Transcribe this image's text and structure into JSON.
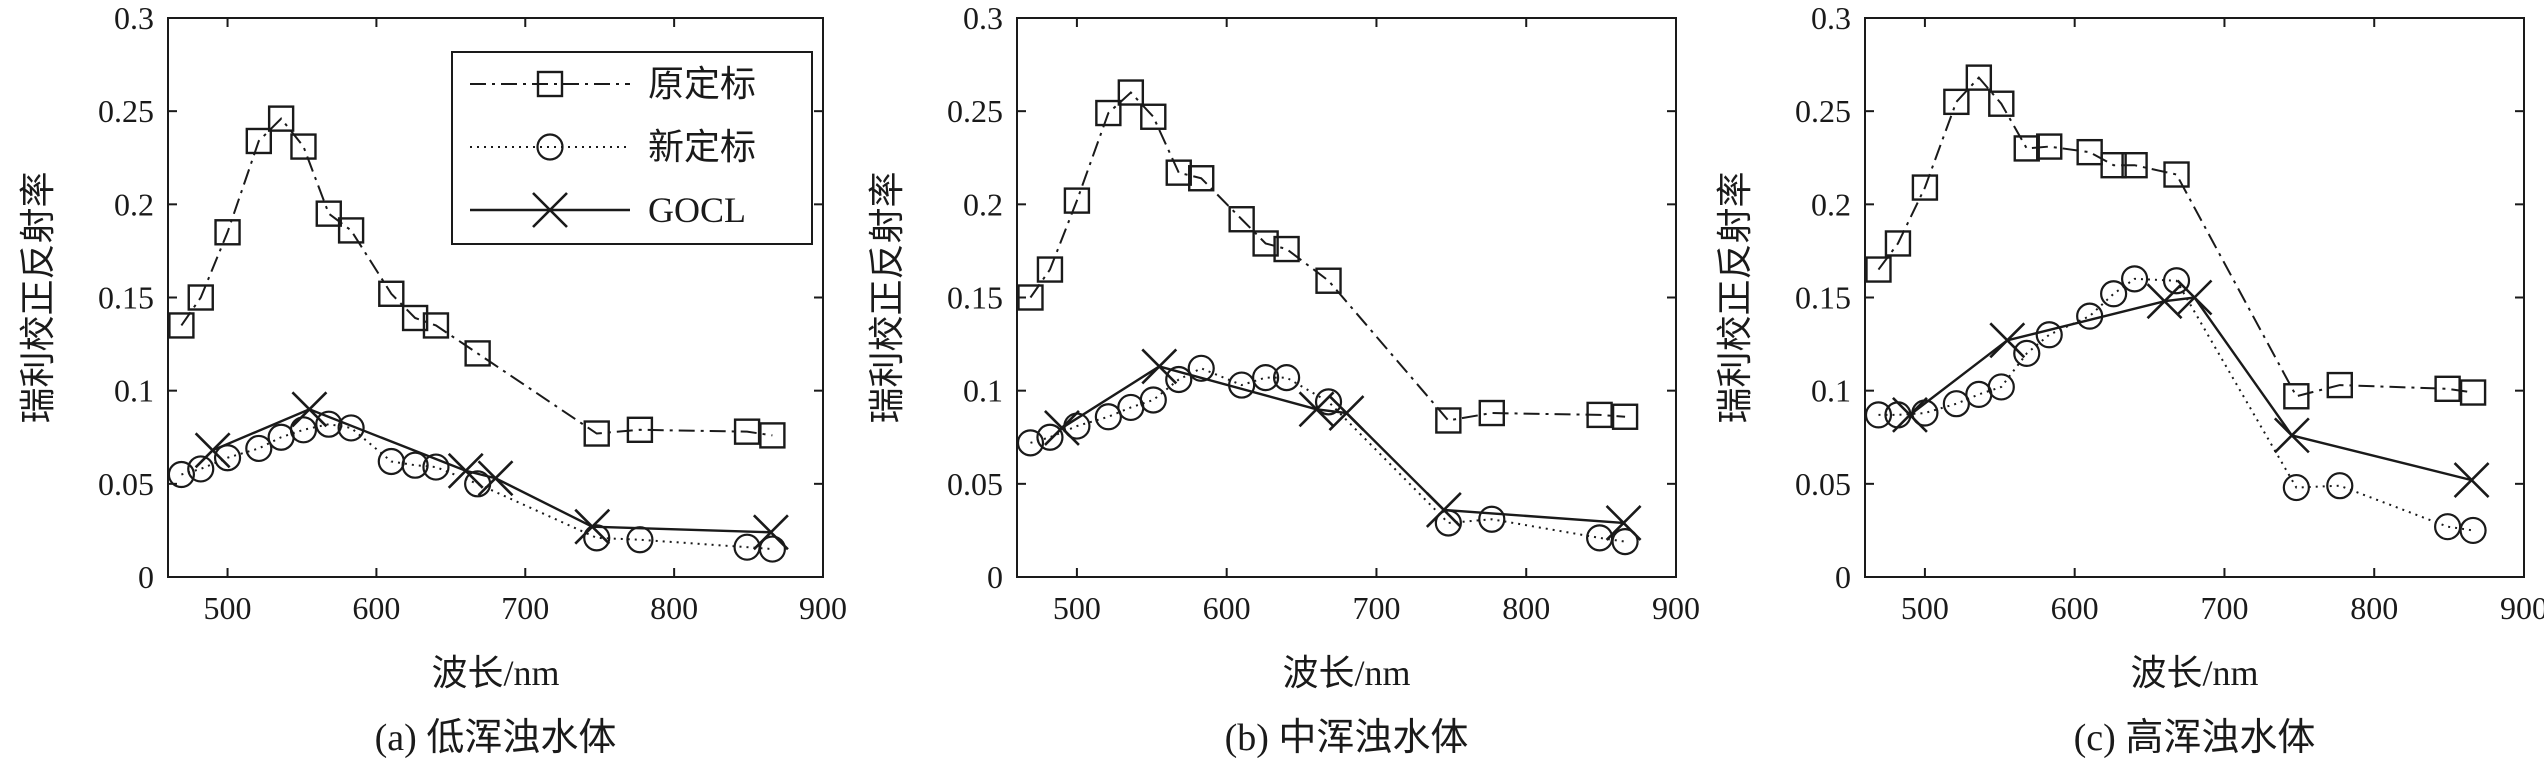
{
  "figure": {
    "legend_entries": [
      "原定标",
      "新定标",
      "GOCL"
    ]
  },
  "chart_data": [
    {
      "type": "line",
      "caption": "(a) 低浑浊水体",
      "xlabel": "波长/nm",
      "ylabel": "瑞利校正反射率",
      "xlim": [
        460,
        900
      ],
      "ylim": [
        0,
        0.3
      ],
      "xticks": [
        "500",
        "600",
        "700",
        "800",
        "900"
      ],
      "yticks": [
        "0",
        "0.05",
        "0.1",
        "0.15",
        "0.2",
        "0.25",
        "0.3"
      ],
      "grid": false,
      "legend": "top-right",
      "series": [
        {
          "name": "原定标",
          "marker": "square",
          "line": "dash-dot",
          "x": [
            469,
            482,
            500,
            521,
            536,
            551,
            568,
            583,
            610,
            626,
            640,
            668,
            748,
            777,
            849,
            866
          ],
          "y": [
            0.135,
            0.15,
            0.185,
            0.234,
            0.246,
            0.231,
            0.195,
            0.186,
            0.152,
            0.139,
            0.135,
            0.12,
            0.077,
            0.079,
            0.078,
            0.076
          ]
        },
        {
          "name": "新定标",
          "marker": "circle",
          "line": "dotted",
          "x": [
            469,
            482,
            500,
            521,
            536,
            551,
            568,
            583,
            610,
            626,
            640,
            668,
            748,
            777,
            849,
            866
          ],
          "y": [
            0.055,
            0.058,
            0.064,
            0.069,
            0.075,
            0.079,
            0.082,
            0.08,
            0.062,
            0.06,
            0.059,
            0.05,
            0.021,
            0.02,
            0.016,
            0.015
          ]
        },
        {
          "name": "GOCL",
          "marker": "x",
          "line": "solid",
          "x": [
            490,
            555,
            660,
            680,
            745,
            865
          ],
          "y": [
            0.068,
            0.09,
            0.057,
            0.053,
            0.027,
            0.024
          ]
        }
      ]
    },
    {
      "type": "line",
      "caption": "(b) 中浑浊水体",
      "xlabel": "波长/nm",
      "ylabel": "瑞利校正反射率",
      "xlim": [
        460,
        900
      ],
      "ylim": [
        0,
        0.3
      ],
      "xticks": [
        "500",
        "600",
        "700",
        "800",
        "900"
      ],
      "yticks": [
        "0",
        "0.05",
        "0.1",
        "0.15",
        "0.2",
        "0.25",
        "0.3"
      ],
      "grid": false,
      "series": [
        {
          "name": "原定标",
          "marker": "square",
          "line": "dash-dot",
          "x": [
            469,
            482,
            500,
            521,
            536,
            551,
            568,
            583,
            610,
            626,
            640,
            668,
            748,
            777,
            849,
            866
          ],
          "y": [
            0.15,
            0.165,
            0.202,
            0.249,
            0.26,
            0.247,
            0.217,
            0.214,
            0.192,
            0.179,
            0.176,
            0.159,
            0.084,
            0.088,
            0.087,
            0.086
          ]
        },
        {
          "name": "新定标",
          "marker": "circle",
          "line": "dotted",
          "x": [
            469,
            482,
            500,
            521,
            536,
            551,
            568,
            583,
            610,
            626,
            640,
            668,
            748,
            777,
            849,
            866
          ],
          "y": [
            0.072,
            0.075,
            0.081,
            0.086,
            0.091,
            0.095,
            0.106,
            0.112,
            0.103,
            0.107,
            0.107,
            0.094,
            0.029,
            0.031,
            0.021,
            0.019
          ]
        },
        {
          "name": "GOCL",
          "marker": "x",
          "line": "solid",
          "x": [
            490,
            555,
            660,
            680,
            745,
            865
          ],
          "y": [
            0.08,
            0.113,
            0.09,
            0.088,
            0.036,
            0.029
          ]
        }
      ]
    },
    {
      "type": "line",
      "caption": "(c) 高浑浊水体",
      "xlabel": "波长/nm",
      "ylabel": "瑞利校正反射率",
      "xlim": [
        460,
        900
      ],
      "ylim": [
        0,
        0.3
      ],
      "xticks": [
        "500",
        "600",
        "700",
        "800",
        "900"
      ],
      "yticks": [
        "0",
        "0.05",
        "0.1",
        "0.15",
        "0.2",
        "0.25",
        "0.3"
      ],
      "grid": false,
      "series": [
        {
          "name": "原定标",
          "marker": "square",
          "line": "dash-dot",
          "x": [
            469,
            482,
            500,
            521,
            536,
            551,
            568,
            583,
            610,
            626,
            640,
            668,
            748,
            777,
            849,
            866
          ],
          "y": [
            0.165,
            0.179,
            0.209,
            0.255,
            0.268,
            0.254,
            0.23,
            0.231,
            0.228,
            0.221,
            0.221,
            0.216,
            0.097,
            0.103,
            0.101,
            0.099
          ]
        },
        {
          "name": "新定标",
          "marker": "circle",
          "line": "dotted",
          "x": [
            469,
            482,
            500,
            521,
            536,
            551,
            568,
            583,
            610,
            626,
            640,
            668,
            748,
            777,
            849,
            866
          ],
          "y": [
            0.087,
            0.087,
            0.088,
            0.093,
            0.098,
            0.102,
            0.12,
            0.13,
            0.14,
            0.152,
            0.16,
            0.159,
            0.048,
            0.049,
            0.027,
            0.025
          ]
        },
        {
          "name": "GOCL",
          "marker": "x",
          "line": "solid",
          "x": [
            490,
            555,
            660,
            680,
            745,
            865
          ],
          "y": [
            0.087,
            0.127,
            0.148,
            0.15,
            0.076,
            0.052
          ]
        }
      ]
    }
  ]
}
